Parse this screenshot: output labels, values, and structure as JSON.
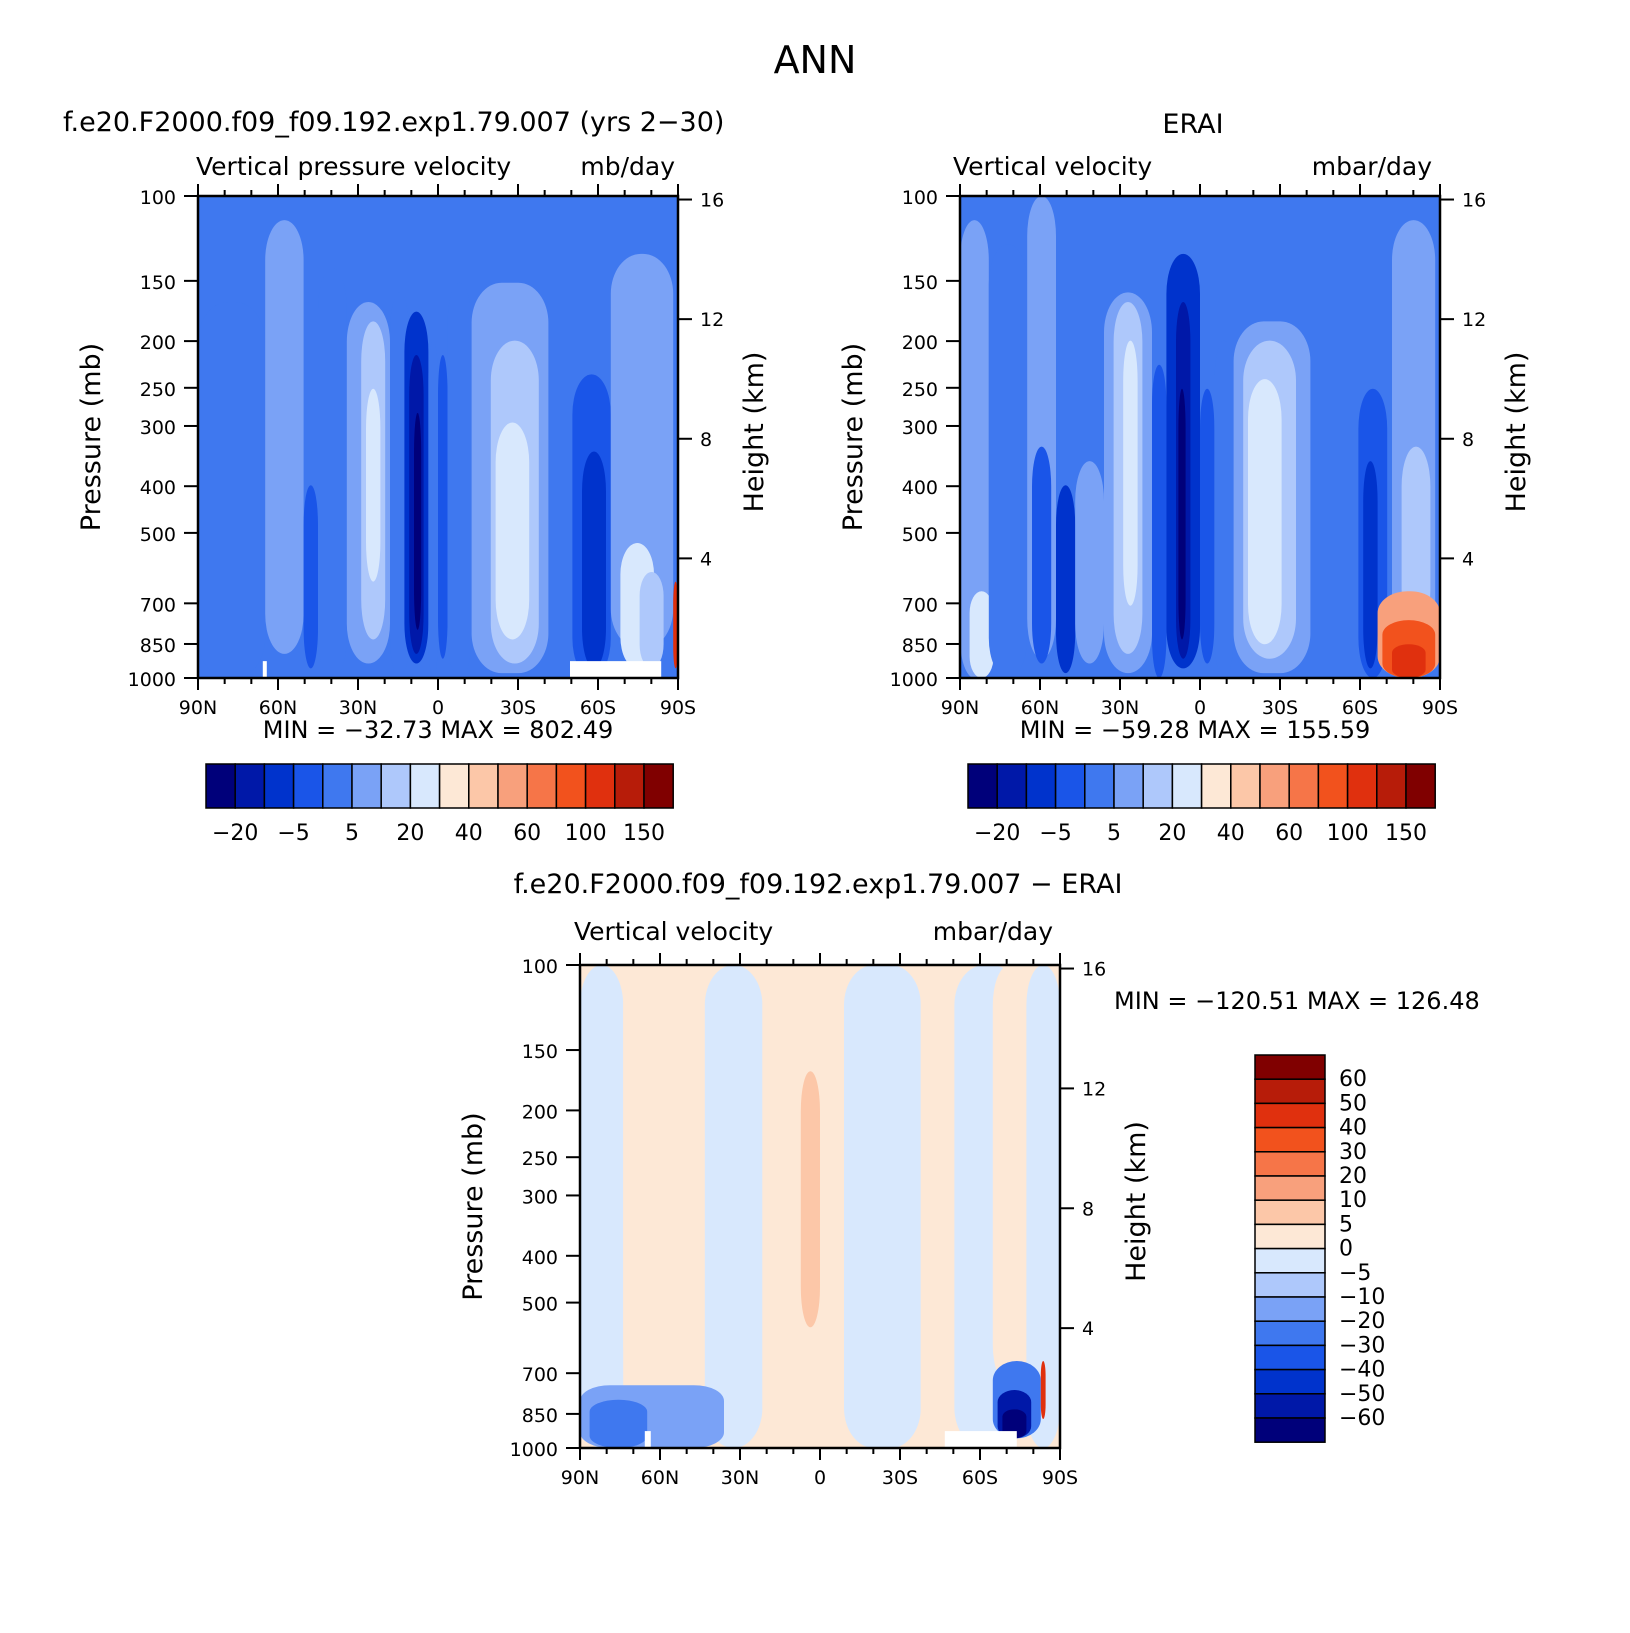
{
  "figure": {
    "season": "ANN"
  },
  "panels": [
    {
      "case_title": "f.e20.F2000.f09_f09.192.exp1.79.007 (yrs 2−30)",
      "left_title": "Vertical pressure velocity",
      "right_title": "mb/day",
      "ylabel": "Pressure (mb)",
      "y2label": "Height (km)",
      "min_max": "MIN = −32.73   MAX = 802.49"
    },
    {
      "case_title": "ERAI",
      "left_title": "Vertical velocity",
      "right_title": "mbar/day",
      "ylabel": "Pressure (mb)",
      "y2label": "Height (km)",
      "min_max": "MIN = −59.28   MAX = 155.59"
    },
    {
      "case_title": "f.e20.F2000.f09_f09.192.exp1.79.007 − ERAI",
      "left_title": "Vertical velocity",
      "right_title": "mbar/day",
      "ylabel": "Pressure (mb)",
      "y2label": "Height (km)",
      "min_max": "MIN = −120.51   MAX = 126.48"
    }
  ],
  "colorbars": {
    "main": {
      "colors": [
        "#00007a",
        "#0018a8",
        "#0033cc",
        "#1a55e8",
        "#3f78ef",
        "#7aa2f6",
        "#aec8fb",
        "#d8e8fd",
        "#fde8d6",
        "#fcc7a8",
        "#f8a07c",
        "#f67548",
        "#f2521d",
        "#e0300e",
        "#b71c09",
        "#800000"
      ],
      "labels": [
        "−20",
        "−5",
        "5",
        "20",
        "40",
        "60",
        "100",
        "150"
      ]
    },
    "diff": {
      "colors": [
        "#800000",
        "#b71c09",
        "#e0300e",
        "#f2521d",
        "#f67548",
        "#f8a07c",
        "#fcc7a8",
        "#fde8d6",
        "#d8e8fd",
        "#aec8fb",
        "#7aa2f6",
        "#3f78ef",
        "#1a55e8",
        "#0033cc",
        "#0018a8",
        "#00007a"
      ],
      "labels": [
        "60",
        "50",
        "40",
        "30",
        "20",
        "10",
        "5",
        "0",
        "−5",
        "−10",
        "−20",
        "−30",
        "−40",
        "−50",
        "−60"
      ]
    }
  },
  "chart_data": [
    {
      "type": "heatmap",
      "title": "f.e20.F2000.f09_f09.192.exp1.79.007 (yrs 2−30)",
      "xlabel": "",
      "ylabel": "Pressure (mb)",
      "y2label": "Height (km)",
      "x_ticks": [
        "90N",
        "60N",
        "30N",
        "0",
        "30S",
        "60S",
        "90S"
      ],
      "y_ticks": [
        100,
        150,
        200,
        250,
        300,
        400,
        500,
        700,
        850,
        1000
      ],
      "y2_ticks": [
        16,
        12,
        8,
        4
      ],
      "ylim": [
        1000,
        100
      ],
      "yscale": "log",
      "units": "mb/day",
      "min": -32.73,
      "max": 802.49
    },
    {
      "type": "heatmap",
      "title": "ERAI",
      "xlabel": "",
      "ylabel": "Pressure (mb)",
      "y2label": "Height (km)",
      "x_ticks": [
        "90N",
        "60N",
        "30N",
        "0",
        "30S",
        "60S",
        "90S"
      ],
      "y_ticks": [
        100,
        150,
        200,
        250,
        300,
        400,
        500,
        700,
        850,
        1000
      ],
      "y2_ticks": [
        16,
        12,
        8,
        4
      ],
      "ylim": [
        1000,
        100
      ],
      "yscale": "log",
      "units": "mbar/day",
      "min": -59.28,
      "max": 155.59
    },
    {
      "type": "heatmap",
      "title": "f.e20.F2000.f09_f09.192.exp1.79.007 − ERAI",
      "xlabel": "",
      "ylabel": "Pressure (mb)",
      "y2label": "Height (km)",
      "x_ticks": [
        "90N",
        "60N",
        "30N",
        "0",
        "30S",
        "60S",
        "90S"
      ],
      "y_ticks": [
        100,
        150,
        200,
        250,
        300,
        400,
        500,
        700,
        850,
        1000
      ],
      "y2_ticks": [
        16,
        12,
        8,
        4
      ],
      "ylim": [
        1000,
        100
      ],
      "yscale": "log",
      "units": "mbar/day",
      "min": -120.51,
      "max": 126.48
    }
  ]
}
